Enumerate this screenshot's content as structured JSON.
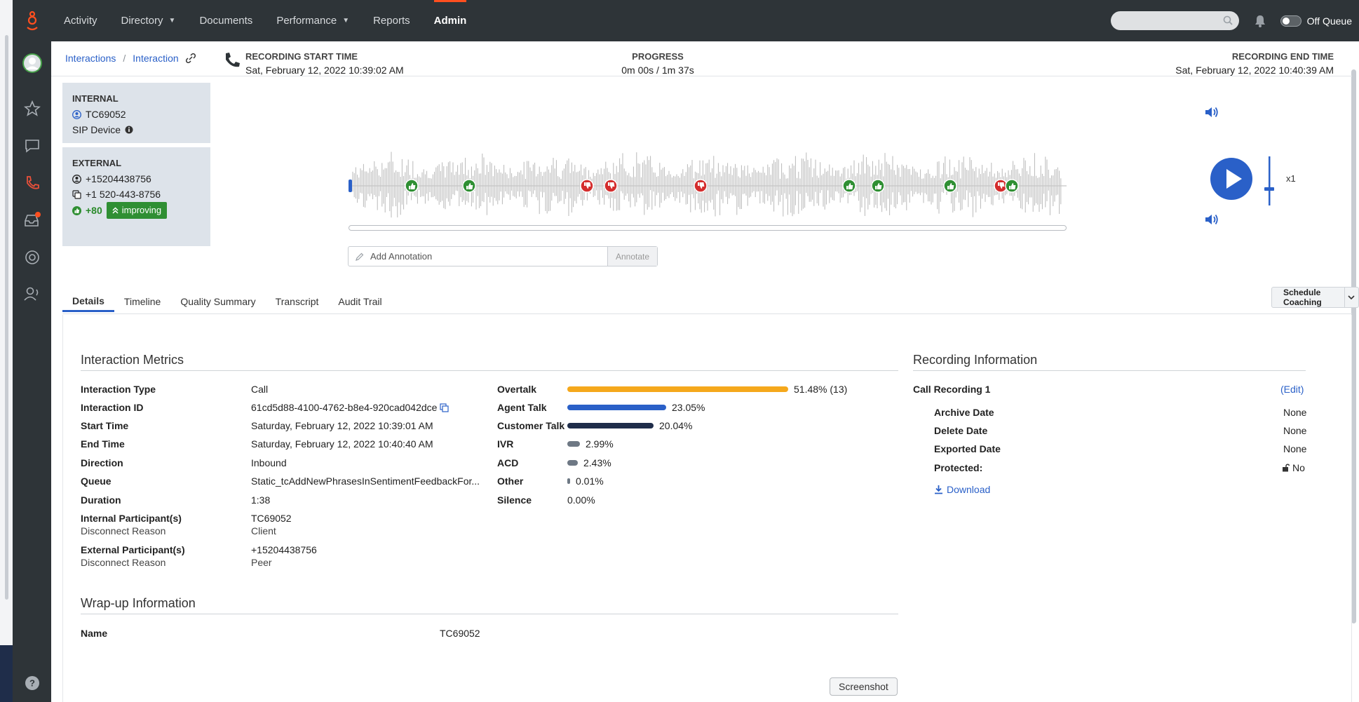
{
  "nav": {
    "items": [
      {
        "label": "Activity",
        "has_caret": false
      },
      {
        "label": "Directory",
        "has_caret": true
      },
      {
        "label": "Documents",
        "has_caret": false
      },
      {
        "label": "Performance",
        "has_caret": true
      },
      {
        "label": "Reports",
        "has_caret": false
      },
      {
        "label": "Admin",
        "has_caret": false,
        "active": true
      }
    ],
    "status_label": "Off Queue",
    "accent": "#ff4f1f"
  },
  "breadcrumb": {
    "first": "Interactions",
    "second": "Interaction"
  },
  "internal": {
    "header": "INTERNAL",
    "user": "TC69052",
    "device": "SIP Device"
  },
  "external": {
    "header": "EXTERNAL",
    "phone_plain": "+15204438756",
    "phone_formatted": "+1 520-443-8756",
    "sentiment_score": "+80",
    "sentiment_trend": "improving"
  },
  "recording": {
    "start_label": "RECORDING START TIME",
    "start_value": "Sat, February 12, 2022 10:39:02 AM",
    "progress_label": "PROGRESS",
    "progress_value": "0m 00s / 1m 37s",
    "end_label": "RECORDING END TIME",
    "end_value": "Sat, February 12, 2022 10:40:39 AM",
    "speed": "x1",
    "playback_position": 0
  },
  "annotation": {
    "placeholder": "Add Annotation",
    "button": "Annotate"
  },
  "tabs": [
    "Details",
    "Timeline",
    "Quality Summary",
    "Transcript",
    "Audit Trail"
  ],
  "schedule_button": "Schedule Coaching",
  "metrics": {
    "title": "Interaction Metrics",
    "rows": [
      {
        "label": "Interaction Type",
        "value": "Call"
      },
      {
        "label": "Interaction ID",
        "value": "61cd5d88-4100-4762-b8e4-920cad042dce"
      },
      {
        "label": "Start Time",
        "value": "Saturday, February 12, 2022 10:39:01 AM"
      },
      {
        "label": "End Time",
        "value": "Saturday, February 12, 2022 10:40:40 AM"
      },
      {
        "label": "Direction",
        "value": "Inbound"
      },
      {
        "label": "Queue",
        "value": "Static_tcAddNewPhrasesInSentimentFeedbackFor..."
      },
      {
        "label": "Duration",
        "value": "1:38"
      },
      {
        "label": "Internal Participant(s)",
        "value": "TC69052",
        "sub_label": "Disconnect Reason",
        "sub_value": "Client"
      },
      {
        "label": "External Participant(s)",
        "value": "+15204438756",
        "sub_label": "Disconnect Reason",
        "sub_value": "Peer"
      }
    ],
    "bars": [
      {
        "label": "Overtalk",
        "percent": 51.48,
        "text": "51.48% (13)",
        "color": "#f5a81c"
      },
      {
        "label": "Agent Talk",
        "percent": 23.05,
        "text": "23.05%",
        "color": "#2a60c8"
      },
      {
        "label": "Customer Talk",
        "percent": 20.04,
        "text": "20.04%",
        "color": "#1f2d4a"
      },
      {
        "label": "IVR",
        "percent": 2.99,
        "text": "2.99%",
        "color": "#6e7884"
      },
      {
        "label": "ACD",
        "percent": 2.43,
        "text": "2.43%",
        "color": "#6e7884"
      },
      {
        "label": "Other",
        "percent": 0.01,
        "text": "0.01%",
        "color": "#6e7884"
      },
      {
        "label": "Silence",
        "percent": 0,
        "text": "0.00%",
        "color": "#6e7884"
      }
    ]
  },
  "recording_info": {
    "title": "Recording Information",
    "name": "Call Recording 1",
    "edit": "(Edit)",
    "rows": [
      {
        "label": "Archive Date",
        "value": "None"
      },
      {
        "label": "Delete Date",
        "value": "None"
      },
      {
        "label": "Exported Date",
        "value": "None"
      },
      {
        "label": "Protected:",
        "value": "No"
      }
    ],
    "download": "Download"
  },
  "wrapup": {
    "title": "Wrap-up Information",
    "name_label": "Name",
    "name_value": "TC69052"
  },
  "tooltip": "Screenshot"
}
